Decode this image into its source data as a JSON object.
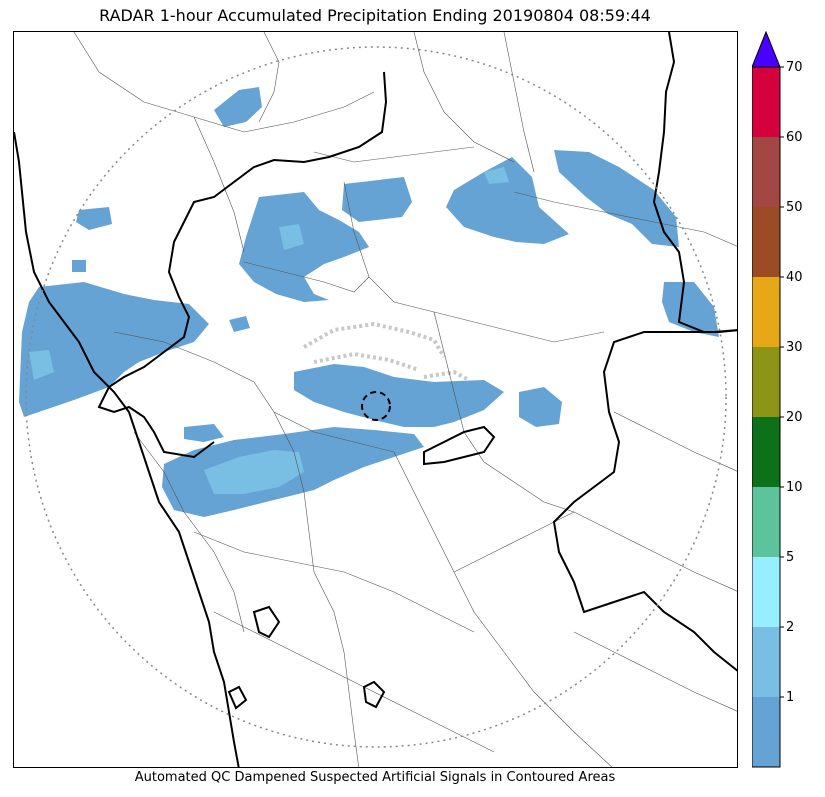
{
  "title": "RADAR 1-hour Accumulated Precipitation Ending 20190804 08:59:44",
  "footer": "Automated QC Dampened Suspected Artificial Signals in Contoured Areas",
  "colorbar": {
    "extend": "max",
    "extend_color": "#4a00ff",
    "levels": [
      {
        "label": "",
        "color": "#65a3d5"
      },
      {
        "label": "1",
        "color": "#78bfe3"
      },
      {
        "label": "2",
        "color": "#96eefe"
      },
      {
        "label": "5",
        "color": "#5dc39b"
      },
      {
        "label": "10",
        "color": "#0d7119"
      },
      {
        "label": "20",
        "color": "#8c9516"
      },
      {
        "label": "30",
        "color": "#e6a817"
      },
      {
        "label": "40",
        "color": "#9b4b26"
      },
      {
        "label": "50",
        "color": "#a24742"
      },
      {
        "label": "60",
        "color": "#d5003e"
      }
    ],
    "top_label": "70"
  },
  "colors": {
    "precip_main": "#65a3d5",
    "precip_light": "#78bfe3",
    "precip_pale": "#96eefe",
    "border": "#000000",
    "district": "#555555",
    "range_ring": "#888888",
    "clutter": "#c8c8c8"
  }
}
